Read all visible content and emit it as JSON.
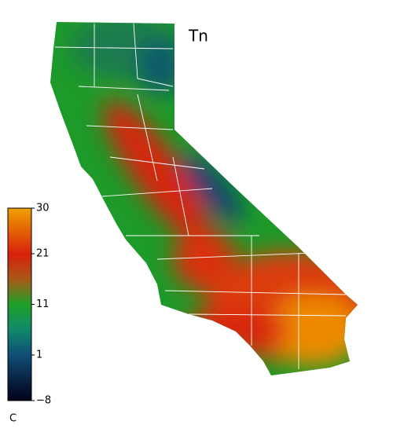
{
  "title": "Tn",
  "colorbar": {
    "lim": [
      -8,
      30
    ],
    "ticks": [
      {
        "value": -8,
        "label": "−8"
      },
      1,
      11,
      21,
      30
    ],
    "unit": "C"
  }
}
